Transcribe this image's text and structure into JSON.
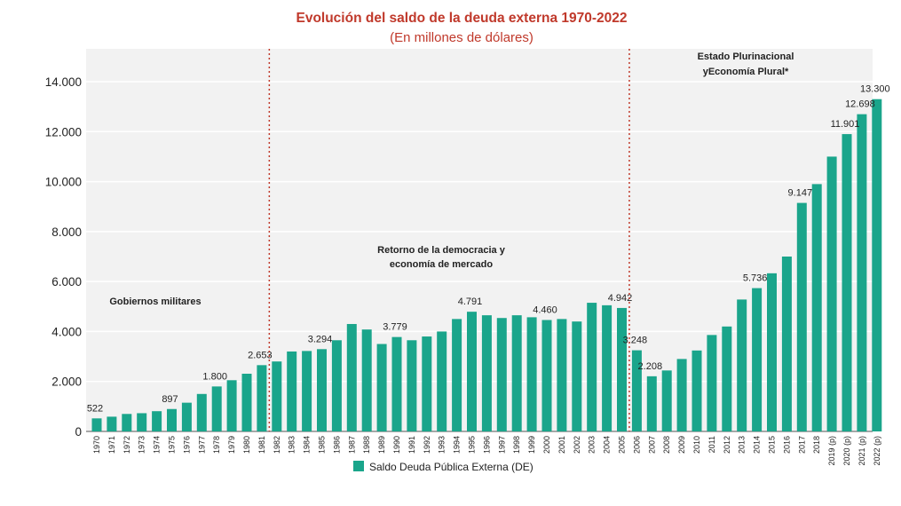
{
  "chart_data": {
    "type": "bar",
    "title": "Evolución del saldo de la deuda externa 1970-2022",
    "subtitle": "(En millones de dólares)",
    "categories": [
      "1970",
      "1971",
      "1972",
      "1973",
      "1974",
      "1975",
      "1976",
      "1977",
      "1978",
      "1979",
      "1980",
      "1981",
      "1982",
      "1983",
      "1984",
      "1985",
      "1986",
      "1987",
      "1988",
      "1989",
      "1990",
      "1991",
      "1992",
      "1993",
      "1994",
      "1995",
      "1996",
      "1997",
      "1998",
      "1999",
      "2000",
      "2001",
      "2002",
      "2003",
      "2004",
      "2005",
      "2006",
      "2007",
      "2008",
      "2009",
      "2010",
      "2011",
      "2012",
      "2013",
      "2014",
      "2015",
      "2016",
      "2017",
      "2018",
      "2019 (p)",
      "2020 (p)",
      "2021 (p)",
      "2022 (p)"
    ],
    "series": [
      {
        "name": "Saldo Deuda Pública Externa (DE)",
        "color": "#1aa58b",
        "values": [
          522,
          590,
          700,
          730,
          810,
          897,
          1150,
          1500,
          1800,
          2050,
          2310,
          2653,
          2800,
          3200,
          3220,
          3294,
          3650,
          4300,
          4080,
          3500,
          3779,
          3650,
          3800,
          4000,
          4500,
          4791,
          4650,
          4540,
          4650,
          4570,
          4460,
          4500,
          4400,
          5150,
          5050,
          4942,
          3248,
          2208,
          2440,
          2900,
          3240,
          3860,
          4200,
          5280,
          5736,
          6330,
          7000,
          9147,
          9900,
          11000,
          11901,
          12698,
          13300
        ]
      }
    ],
    "data_labels": [
      {
        "category": "1970",
        "text": "522"
      },
      {
        "category": "1975",
        "text": "897"
      },
      {
        "category": "1978",
        "text": "1.800"
      },
      {
        "category": "1981",
        "text": "2.653"
      },
      {
        "category": "1985",
        "text": "3.294"
      },
      {
        "category": "1990",
        "text": "3.779"
      },
      {
        "category": "1995",
        "text": "4.791"
      },
      {
        "category": "2000",
        "text": "4.460"
      },
      {
        "category": "2005",
        "text": "4.942"
      },
      {
        "category": "2006",
        "text": "3.248"
      },
      {
        "category": "2007",
        "text": "2.208"
      },
      {
        "category": "2014",
        "text": "5.736"
      },
      {
        "category": "2017",
        "text": "9.147"
      },
      {
        "category": "2020 (p)",
        "text": "11.901"
      },
      {
        "category": "2021 (p)",
        "text": "12.698"
      },
      {
        "category": "2022 (p)",
        "text": "13.300"
      }
    ],
    "yticks": [
      {
        "value": 0,
        "label": "0"
      },
      {
        "value": 2000,
        "label": "2.000"
      },
      {
        "value": 4000,
        "label": "4.000"
      },
      {
        "value": 6000,
        "label": "6.000"
      },
      {
        "value": 8000,
        "label": "8.000"
      },
      {
        "value": 10000,
        "label": "10.000"
      },
      {
        "value": 12000,
        "label": "12.000"
      },
      {
        "value": 14000,
        "label": "14.000"
      }
    ],
    "ylim": [
      0,
      14000
    ],
    "grid": true,
    "era_dividers": [
      {
        "between": [
          "1981",
          "1982"
        ]
      },
      {
        "between": [
          "2005",
          "2006"
        ]
      }
    ],
    "era_labels": [
      {
        "lines": [
          "Gobiernos militares"
        ]
      },
      {
        "lines": [
          "Retorno de la democracia y",
          "economía de mercado"
        ]
      },
      {
        "lines": [
          "Estado Plurinacional",
          "yEconomía Plural*"
        ]
      }
    ],
    "legend": {
      "position": "bottom-center",
      "label": "Saldo Deuda Pública Externa (DE)"
    },
    "colors": {
      "bar": "#1aa58b",
      "title": "#c0392b",
      "divider": "#c0392b",
      "plot_bg": "#f2f2f2",
      "grid": "#ffffff"
    }
  }
}
